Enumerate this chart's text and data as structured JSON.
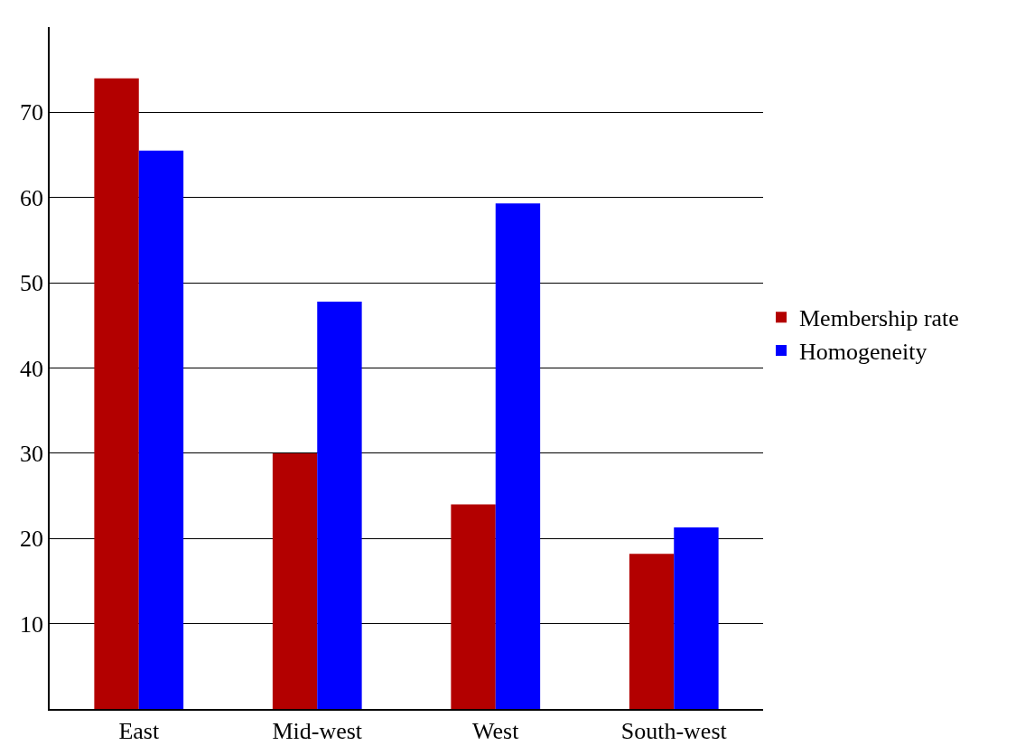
{
  "chart_data": {
    "type": "bar",
    "categories": [
      "East",
      "Mid-west",
      "West",
      "South-west"
    ],
    "series": [
      {
        "name": "Membership rate",
        "color": "#b30000",
        "values": [
          74,
          30,
          24,
          18.2
        ]
      },
      {
        "name": "Homogeneity",
        "color": "#0000ff",
        "values": [
          65.5,
          47.8,
          59.3,
          21.3
        ]
      }
    ],
    "ylim": [
      0,
      80
    ],
    "yticks": [
      10,
      20,
      30,
      40,
      50,
      60,
      70
    ],
    "grid": "y",
    "legend": "right"
  }
}
